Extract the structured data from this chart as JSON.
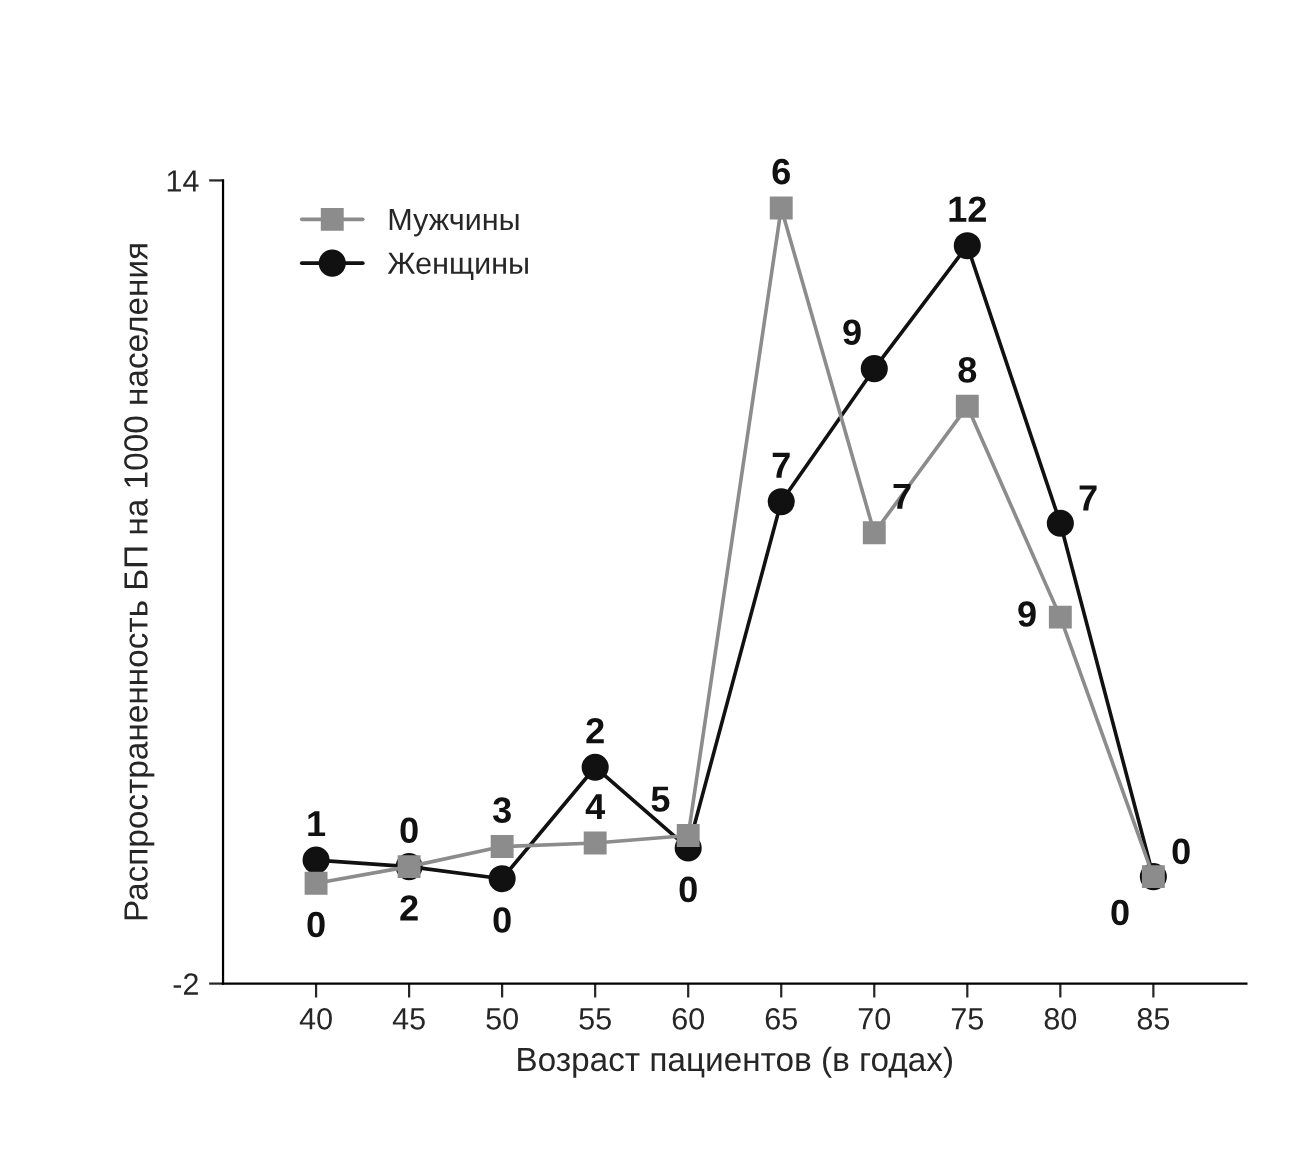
{
  "chart_data": {
    "type": "line",
    "xlabel": "Возраст пациентов (в годах)",
    "ylabel": "Распространенность БП на 1000 населения",
    "x": [
      40,
      45,
      50,
      55,
      60,
      65,
      70,
      75,
      80,
      85
    ],
    "xlim": [
      35,
      90
    ],
    "xticks": [
      40,
      45,
      50,
      55,
      60,
      65,
      70,
      75,
      80,
      85
    ],
    "ylim": [
      -2,
      14
    ],
    "yticks": [
      -2,
      14
    ],
    "legend": "top left",
    "grid": false,
    "line_style": "solid",
    "series": [
      {
        "name": "Мужчины",
        "color": "#8c8c8c",
        "marker": "square",
        "values": [
          0.0,
          0.33,
          0.73,
          0.8,
          0.95,
          13.45,
          6.98,
          9.5,
          5.3,
          0.13
        ]
      },
      {
        "name": "Женщины",
        "color": "#111111",
        "marker": "circle",
        "values": [
          0.46,
          0.33,
          0.09,
          2.31,
          0.7,
          7.6,
          10.25,
          12.7,
          7.17,
          0.13
        ]
      }
    ],
    "annotations": [
      {
        "text": "0",
        "x": 40,
        "y": 0.0
      },
      {
        "text": "2",
        "x": 45,
        "y": 0.33
      },
      {
        "text": "3",
        "x": 50,
        "y": 0.73
      },
      {
        "text": "4",
        "x": 55,
        "y": 0.8
      },
      {
        "text": "5",
        "x": 60,
        "y": 0.95
      },
      {
        "text": "6",
        "x": 65,
        "y": 13.45
      },
      {
        "text": "7",
        "x": 70,
        "y": 6.98
      },
      {
        "text": "8",
        "x": 75,
        "y": 9.5
      },
      {
        "text": "9",
        "x": 80,
        "y": 5.3
      },
      {
        "text": "0",
        "x": 85,
        "y": 0.13
      },
      {
        "text": "1",
        "x": 40,
        "y": 0.46
      },
      {
        "text": "0",
        "x": 45,
        "y": 0.33
      },
      {
        "text": "0",
        "x": 50,
        "y": 0.09
      },
      {
        "text": "2",
        "x": 55,
        "y": 2.31
      },
      {
        "text": "0",
        "x": 60,
        "y": 0.7
      },
      {
        "text": "7",
        "x": 65,
        "y": 7.6
      },
      {
        "text": "9",
        "x": 70,
        "y": 10.25
      },
      {
        "text": "12",
        "x": 75,
        "y": 12.7
      },
      {
        "text": "7",
        "x": 80,
        "y": 7.17
      },
      {
        "text": "0",
        "x": 85,
        "y": 0.13
      }
    ]
  }
}
